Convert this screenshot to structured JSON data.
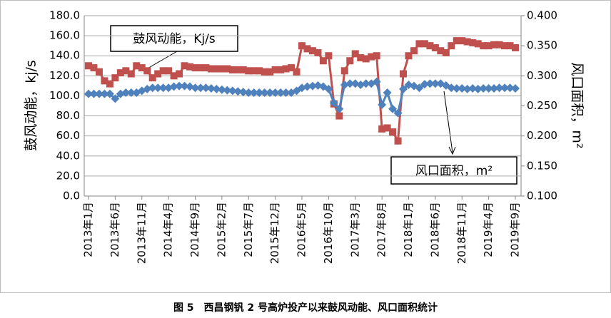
{
  "chart_data": {
    "type": "line",
    "caption": "图 5　西昌钢钒 2 号高炉投产以来鼓风动能、风口面积统计",
    "ylabel": "鼓风动能，kj/s",
    "y2label": "风口面积，m²",
    "categories": [
      "2013年1月",
      null,
      null,
      null,
      null,
      "2013年6月",
      null,
      null,
      null,
      null,
      "2013年11月",
      null,
      null,
      null,
      null,
      "2014年4月",
      null,
      null,
      null,
      null,
      "2014年9月",
      null,
      null,
      null,
      null,
      "2015年2月",
      null,
      null,
      null,
      null,
      "2015年7月",
      null,
      null,
      null,
      null,
      "2015年12月",
      null,
      null,
      null,
      null,
      "2016年5月",
      null,
      null,
      null,
      null,
      "2016年10月",
      null,
      null,
      null,
      null,
      "2017年3月",
      null,
      null,
      null,
      null,
      "2017年8月",
      null,
      null,
      null,
      null,
      "2018年1月",
      null,
      null,
      null,
      null,
      "2018年6月",
      null,
      null,
      null,
      null,
      "2018年11月",
      null,
      null,
      null,
      null,
      "2019年4月",
      null,
      null,
      null,
      null,
      "2019年9月"
    ],
    "series": [
      {
        "name": "鼓风动能，Kj/s",
        "color": "#c0504d",
        "marker": "square",
        "values": [
          130,
          128,
          124,
          115,
          112,
          118,
          123,
          125,
          122,
          130,
          128,
          125,
          118,
          122,
          125,
          125,
          120,
          122,
          130,
          129,
          128,
          128,
          128,
          127,
          127,
          127,
          127,
          126,
          126,
          126,
          125,
          125,
          125,
          124,
          124,
          126,
          126,
          127,
          128,
          124,
          150,
          147,
          145,
          143,
          135,
          140,
          92,
          80,
          125,
          135,
          142,
          138,
          137,
          139,
          140,
          67,
          68,
          64,
          55,
          122,
          140,
          145,
          152,
          152,
          150,
          148,
          145,
          143,
          150,
          155,
          155,
          154,
          153,
          152,
          150,
          150,
          151,
          151,
          150,
          150,
          148
        ]
      },
      {
        "name": "风口面积，m²",
        "color": "#4f81bd",
        "marker": "diamond",
        "axis": "y2",
        "values": [
          0.27,
          0.27,
          0.27,
          0.27,
          0.27,
          0.262,
          0.27,
          0.272,
          0.272,
          0.272,
          0.275,
          0.278,
          0.28,
          0.28,
          0.28,
          0.28,
          0.282,
          0.283,
          0.283,
          0.282,
          0.28,
          0.28,
          0.28,
          0.279,
          0.278,
          0.277,
          0.276,
          0.275,
          0.274,
          0.273,
          0.272,
          0.272,
          0.272,
          0.272,
          0.272,
          0.272,
          0.272,
          0.272,
          0.272,
          0.275,
          0.28,
          0.282,
          0.283,
          0.284,
          0.282,
          0.278,
          0.255,
          0.245,
          0.285,
          0.287,
          0.287,
          0.285,
          0.287,
          0.287,
          0.29,
          0.252,
          0.272,
          0.245,
          0.238,
          0.278,
          0.285,
          0.283,
          0.28,
          0.286,
          0.287,
          0.287,
          0.287,
          0.284,
          0.28,
          0.279,
          0.279,
          0.278,
          0.279,
          0.278,
          0.279,
          0.279,
          0.279,
          0.28,
          0.28,
          0.28,
          0.279
        ]
      }
    ],
    "ylim": [
      0,
      180
    ],
    "yticks": [
      {
        "value": 0,
        "label": "0.0"
      },
      {
        "value": 20,
        "label": "20.0"
      },
      {
        "value": 40,
        "label": "40.0"
      },
      {
        "value": 60,
        "label": "60.0"
      },
      {
        "value": 80,
        "label": "80.0"
      },
      {
        "value": 100,
        "label": "100.0"
      },
      {
        "value": 120,
        "label": "120.0"
      },
      {
        "value": 140,
        "label": "140.0"
      },
      {
        "value": 160,
        "label": "160.0"
      },
      {
        "value": 180,
        "label": "180.0"
      }
    ],
    "y2lim": [
      0.1,
      0.4
    ],
    "y2ticks": [
      {
        "value": 0.1,
        "label": "0.100"
      },
      {
        "value": 0.15,
        "label": "0.150"
      },
      {
        "value": 0.2,
        "label": "0.200"
      },
      {
        "value": 0.25,
        "label": "0.250"
      },
      {
        "value": 0.3,
        "label": "0.300"
      },
      {
        "value": 0.35,
        "label": "0.350"
      },
      {
        "value": 0.4,
        "label": "0.400"
      }
    ],
    "grid": true
  }
}
